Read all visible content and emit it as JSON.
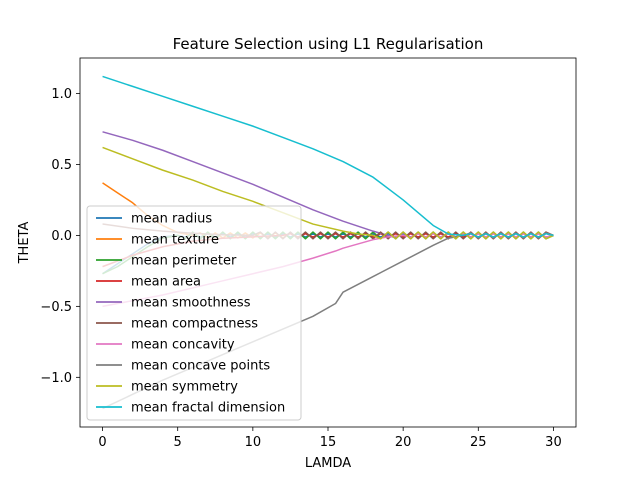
{
  "chart_data": {
    "type": "line",
    "title": "Feature Selection using L1 Regularisation",
    "xlabel": "LAMDA",
    "ylabel": "THETA",
    "xlim": [
      -1.5,
      31.5
    ],
    "ylim": [
      -1.35,
      1.25
    ],
    "xticks": [
      0,
      5,
      10,
      15,
      20,
      25,
      30
    ],
    "xtick_labels": [
      "0",
      "5",
      "10",
      "15",
      "20",
      "25",
      "30"
    ],
    "yticks": [
      -1.0,
      -0.5,
      0.0,
      0.5,
      1.0
    ],
    "ytick_labels": [
      "−1.0",
      "−0.5",
      "0.0",
      "0.5",
      "1.0"
    ],
    "grid": false,
    "legend_position": "lower-left",
    "series": [
      {
        "name": "mean radius",
        "color": "#1f77b4",
        "points": [
          [
            0,
            -0.27
          ],
          [
            1,
            -0.2
          ],
          [
            2,
            -0.13
          ],
          [
            3,
            -0.06
          ],
          [
            4,
            -0.01
          ],
          [
            5,
            0.0
          ],
          [
            30,
            0.0
          ]
        ]
      },
      {
        "name": "mean texture",
        "color": "#ff7f0e",
        "points": [
          [
            0,
            0.37
          ],
          [
            1,
            0.3
          ],
          [
            2,
            0.23
          ],
          [
            3,
            0.14
          ],
          [
            4,
            0.07
          ],
          [
            5,
            0.02
          ],
          [
            6,
            0.0
          ],
          [
            30,
            0.0
          ]
        ]
      },
      {
        "name": "mean perimeter",
        "color": "#2ca02c",
        "points": [
          [
            0,
            -0.27
          ],
          [
            1,
            -0.22
          ],
          [
            2,
            -0.15
          ],
          [
            3,
            -0.08
          ],
          [
            4,
            -0.02
          ],
          [
            5,
            0.0
          ],
          [
            30,
            0.0
          ]
        ]
      },
      {
        "name": "mean area",
        "color": "#d62728",
        "points": [
          [
            0,
            -0.22
          ],
          [
            2,
            -0.14
          ],
          [
            4,
            -0.08
          ],
          [
            6,
            -0.04
          ],
          [
            8,
            -0.02
          ],
          [
            10,
            -0.01
          ],
          [
            12,
            0.0
          ],
          [
            30,
            0.0
          ]
        ]
      },
      {
        "name": "mean smoothness",
        "color": "#9467bd",
        "points": [
          [
            0,
            0.73
          ],
          [
            2,
            0.67
          ],
          [
            4,
            0.6
          ],
          [
            6,
            0.52
          ],
          [
            8,
            0.44
          ],
          [
            10,
            0.36
          ],
          [
            12,
            0.27
          ],
          [
            14,
            0.18
          ],
          [
            16,
            0.1
          ],
          [
            18,
            0.03
          ],
          [
            19,
            0.0
          ],
          [
            30,
            0.0
          ]
        ]
      },
      {
        "name": "mean compactness",
        "color": "#8c564b",
        "points": [
          [
            0,
            0.08
          ],
          [
            2,
            0.05
          ],
          [
            4,
            0.03
          ],
          [
            6,
            0.015
          ],
          [
            8,
            0.005
          ],
          [
            10,
            0.0
          ],
          [
            30,
            0.0
          ]
        ]
      },
      {
        "name": "mean concavity",
        "color": "#e377c2",
        "points": [
          [
            0,
            -0.5
          ],
          [
            2,
            -0.46
          ],
          [
            4,
            -0.42
          ],
          [
            6,
            -0.37
          ],
          [
            8,
            -0.32
          ],
          [
            10,
            -0.27
          ],
          [
            12,
            -0.22
          ],
          [
            14,
            -0.16
          ],
          [
            15.5,
            -0.11
          ],
          [
            16,
            -0.09
          ],
          [
            17,
            -0.06
          ],
          [
            18,
            -0.03
          ],
          [
            19,
            -0.01
          ],
          [
            20,
            0.0
          ],
          [
            30,
            0.0
          ]
        ]
      },
      {
        "name": "mean concave points",
        "color": "#7f7f7f",
        "points": [
          [
            0,
            -1.22
          ],
          [
            2,
            -1.12
          ],
          [
            4,
            -1.02
          ],
          [
            6,
            -0.93
          ],
          [
            8,
            -0.84
          ],
          [
            10,
            -0.75
          ],
          [
            12,
            -0.66
          ],
          [
            14,
            -0.57
          ],
          [
            15.5,
            -0.48
          ],
          [
            16,
            -0.4
          ],
          [
            18,
            -0.29
          ],
          [
            20,
            -0.18
          ],
          [
            22,
            -0.07
          ],
          [
            23,
            -0.02
          ],
          [
            24,
            0.0
          ],
          [
            30,
            0.0
          ]
        ]
      },
      {
        "name": "mean symmetry",
        "color": "#bcbd22",
        "points": [
          [
            0,
            0.62
          ],
          [
            2,
            0.54
          ],
          [
            4,
            0.46
          ],
          [
            6,
            0.39
          ],
          [
            8,
            0.31
          ],
          [
            10,
            0.24
          ],
          [
            12,
            0.16
          ],
          [
            14,
            0.08
          ],
          [
            16,
            0.03
          ],
          [
            17,
            0.01
          ],
          [
            18,
            0.0
          ],
          [
            30,
            0.0
          ]
        ]
      },
      {
        "name": "mean fractal dimension",
        "color": "#17becf",
        "points": [
          [
            0,
            1.12
          ],
          [
            2,
            1.05
          ],
          [
            4,
            0.98
          ],
          [
            6,
            0.91
          ],
          [
            8,
            0.84
          ],
          [
            10,
            0.77
          ],
          [
            12,
            0.69
          ],
          [
            14,
            0.61
          ],
          [
            16,
            0.52
          ],
          [
            18,
            0.41
          ],
          [
            20,
            0.25
          ],
          [
            21,
            0.16
          ],
          [
            22,
            0.07
          ],
          [
            23,
            0.01
          ],
          [
            24,
            0.0
          ],
          [
            30,
            0.0
          ]
        ]
      }
    ]
  }
}
